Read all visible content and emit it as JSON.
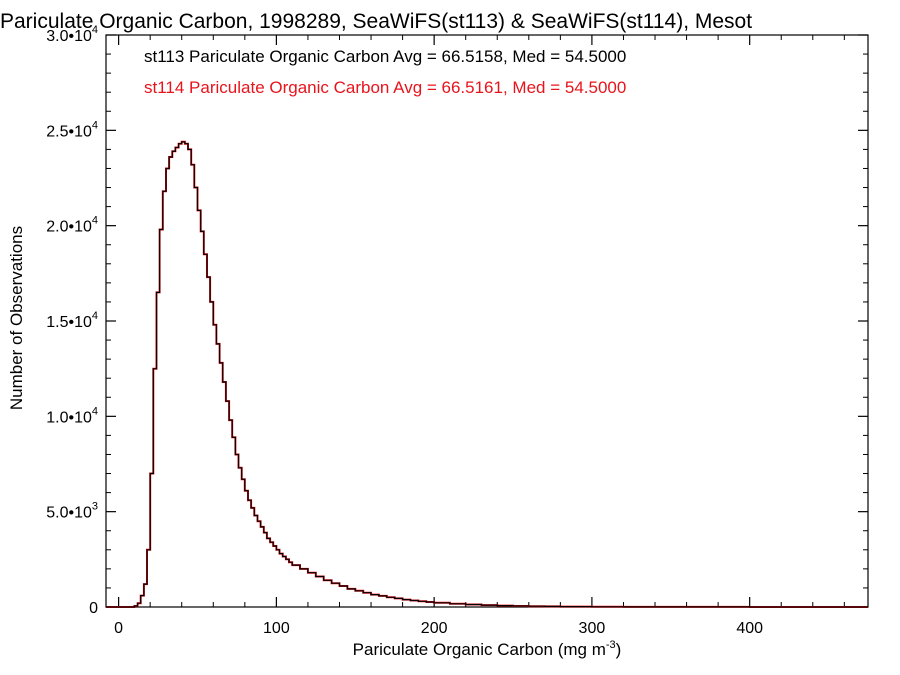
{
  "chart_data": {
    "type": "line",
    "title": "Pariculate Organic Carbon, 1998289, SeaWiFS(st113) & SeaWiFS(st114), Mesot",
    "xlabel": "Pariculate Organic Carbon (mg m",
    "xlabel_sup": "-3",
    "xlabel_close": ")",
    "ylabel": "Number of Observations",
    "xlim": [
      -8,
      475
    ],
    "ylim": [
      0,
      30000
    ],
    "grid": false,
    "x_ticks": [
      0,
      100,
      200,
      300,
      400
    ],
    "y_ticks": [
      {
        "value": 0,
        "mantissa": "0",
        "exp": ""
      },
      {
        "value": 5000,
        "mantissa": "5.0•10",
        "exp": "3"
      },
      {
        "value": 10000,
        "mantissa": "1.0•10",
        "exp": "4"
      },
      {
        "value": 15000,
        "mantissa": "1.5•10",
        "exp": "4"
      },
      {
        "value": 20000,
        "mantissa": "2.0•10",
        "exp": "4"
      },
      {
        "value": 25000,
        "mantissa": "2.5•10",
        "exp": "4"
      },
      {
        "value": 30000,
        "mantissa": "3.0•10",
        "exp": "4"
      }
    ],
    "annotations": [
      {
        "text": "st113 Pariculate Organic Carbon Avg = 66.5158, Med = 54.5000",
        "color": "#000000"
      },
      {
        "text": "st114 Pariculate Organic Carbon Avg = 66.5161, Med = 54.5000",
        "color": "#e8141c"
      }
    ],
    "series": [
      {
        "color": "#e8141c",
        "x": [
          -8,
          10,
          12,
          14,
          16,
          18,
          20,
          22,
          24,
          26,
          28,
          30,
          32,
          34,
          36,
          38,
          40,
          42,
          44,
          46,
          48,
          50,
          52,
          54,
          56,
          58,
          60,
          62,
          64,
          66,
          68,
          70,
          72,
          74,
          76,
          78,
          80,
          82,
          84,
          86,
          88,
          90,
          92,
          94,
          96,
          98,
          100,
          102,
          104,
          106,
          108,
          110,
          115,
          120,
          125,
          130,
          135,
          140,
          145,
          150,
          155,
          160,
          165,
          170,
          175,
          180,
          185,
          190,
          195,
          200,
          210,
          220,
          230,
          240,
          250,
          260,
          270,
          280,
          300,
          320,
          350,
          400,
          475
        ],
        "y": [
          0,
          50,
          200,
          600,
          1200,
          3000,
          7000,
          12500,
          16500,
          19800,
          21800,
          23000,
          23600,
          23900,
          24100,
          24300,
          24400,
          24300,
          24000,
          23200,
          22000,
          20800,
          19700,
          18500,
          17300,
          16000,
          14800,
          13800,
          12800,
          11800,
          10800,
          9800,
          8900,
          8000,
          7300,
          6700,
          6100,
          5600,
          5200,
          4800,
          4500,
          4200,
          3900,
          3600,
          3400,
          3200,
          3000,
          2800,
          2650,
          2500,
          2350,
          2200,
          2000,
          1800,
          1600,
          1400,
          1250,
          1100,
          950,
          850,
          750,
          650,
          580,
          510,
          450,
          390,
          340,
          300,
          260,
          220,
          170,
          130,
          100,
          75,
          55,
          40,
          30,
          20,
          12,
          7,
          3,
          1,
          0
        ]
      },
      {
        "color": "#000000",
        "x": [
          -8,
          10,
          12,
          14,
          16,
          18,
          20,
          22,
          24,
          26,
          28,
          30,
          32,
          34,
          36,
          38,
          40,
          42,
          44,
          46,
          48,
          50,
          52,
          54,
          56,
          58,
          60,
          62,
          64,
          66,
          68,
          70,
          72,
          74,
          76,
          78,
          80,
          82,
          84,
          86,
          88,
          90,
          92,
          94,
          96,
          98,
          100,
          102,
          104,
          106,
          108,
          110,
          115,
          120,
          125,
          130,
          135,
          140,
          145,
          150,
          155,
          160,
          165,
          170,
          175,
          180,
          185,
          190,
          195,
          200,
          210,
          220,
          230,
          240,
          250,
          260,
          270,
          280,
          300,
          320,
          350,
          400,
          475
        ],
        "y": [
          0,
          50,
          200,
          600,
          1200,
          3000,
          7000,
          12500,
          16500,
          19800,
          21800,
          23000,
          23600,
          23900,
          24100,
          24300,
          24400,
          24300,
          24000,
          23200,
          22000,
          20800,
          19700,
          18500,
          17300,
          16000,
          14800,
          13800,
          12800,
          11800,
          10800,
          9800,
          8900,
          8000,
          7300,
          6700,
          6100,
          5600,
          5200,
          4800,
          4500,
          4200,
          3900,
          3600,
          3400,
          3200,
          3000,
          2800,
          2650,
          2500,
          2350,
          2200,
          2000,
          1800,
          1600,
          1400,
          1250,
          1100,
          950,
          850,
          750,
          650,
          580,
          510,
          450,
          390,
          340,
          300,
          260,
          220,
          170,
          130,
          100,
          75,
          55,
          40,
          30,
          20,
          12,
          7,
          3,
          1,
          0
        ]
      }
    ]
  }
}
